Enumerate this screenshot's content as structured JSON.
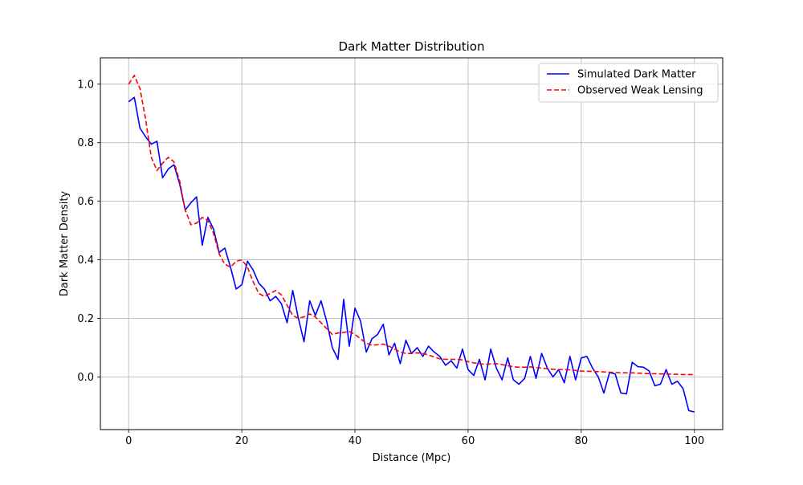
{
  "chart_data": {
    "type": "line",
    "title": "Dark Matter Distribution",
    "xlabel": "Distance (Mpc)",
    "ylabel": "Dark Matter Density",
    "xlim": [
      -5,
      105
    ],
    "ylim": [
      -0.18,
      1.09
    ],
    "xticks": [
      0,
      20,
      40,
      60,
      80,
      100
    ],
    "xtick_labels": [
      "0",
      "20",
      "40",
      "60",
      "80",
      "100"
    ],
    "yticks": [
      0.0,
      0.2,
      0.4,
      0.6,
      0.8,
      1.0
    ],
    "ytick_labels": [
      "0.0",
      "0.2",
      "0.4",
      "0.6",
      "0.8",
      "1.0"
    ],
    "grid": true,
    "legend_position": "top-right",
    "series": [
      {
        "name": "Simulated Dark Matter",
        "color": "#0000ff",
        "style": "solid",
        "x": [
          0,
          1,
          2,
          3,
          4,
          5,
          6,
          7,
          8,
          9,
          10,
          11,
          12,
          13,
          14,
          15,
          16,
          17,
          18,
          19,
          20,
          21,
          22,
          23,
          24,
          25,
          26,
          27,
          28,
          29,
          30,
          31,
          32,
          33,
          34,
          35,
          36,
          37,
          38,
          39,
          40,
          41,
          42,
          43,
          44,
          45,
          46,
          47,
          48,
          49,
          50,
          51,
          52,
          53,
          54,
          55,
          56,
          57,
          58,
          59,
          60,
          61,
          62,
          63,
          64,
          65,
          66,
          67,
          68,
          69,
          70,
          71,
          72,
          73,
          74,
          75,
          76,
          77,
          78,
          79,
          80,
          81,
          82,
          83,
          84,
          85,
          86,
          87,
          88,
          89,
          90,
          91,
          92,
          93,
          94,
          95,
          96,
          97,
          98,
          99,
          100
        ],
        "y": [
          0.94,
          0.955,
          0.85,
          0.82,
          0.795,
          0.805,
          0.68,
          0.71,
          0.725,
          0.66,
          0.57,
          0.595,
          0.615,
          0.45,
          0.545,
          0.505,
          0.425,
          0.44,
          0.375,
          0.3,
          0.315,
          0.395,
          0.365,
          0.32,
          0.3,
          0.26,
          0.275,
          0.25,
          0.185,
          0.295,
          0.2,
          0.12,
          0.26,
          0.21,
          0.26,
          0.19,
          0.1,
          0.06,
          0.265,
          0.105,
          0.235,
          0.19,
          0.085,
          0.13,
          0.145,
          0.18,
          0.075,
          0.115,
          0.045,
          0.125,
          0.08,
          0.1,
          0.07,
          0.105,
          0.085,
          0.07,
          0.04,
          0.055,
          0.03,
          0.095,
          0.025,
          0.005,
          0.06,
          -0.01,
          0.095,
          0.03,
          -0.01,
          0.065,
          -0.01,
          -0.025,
          -0.005,
          0.07,
          -0.005,
          0.08,
          0.03,
          0.0,
          0.025,
          -0.02,
          0.07,
          -0.01,
          0.065,
          0.07,
          0.03,
          0.0,
          -0.055,
          0.015,
          0.01,
          -0.055,
          -0.058,
          0.05,
          0.035,
          0.033,
          0.02,
          -0.03,
          -0.025,
          0.025,
          -0.025,
          -0.015,
          -0.04,
          -0.115,
          -0.12
        ]
      },
      {
        "name": "Observed Weak Lensing",
        "color": "#ff0000",
        "style": "dashed",
        "x": [
          0,
          1,
          2,
          3,
          4,
          5,
          6,
          7,
          8,
          9,
          10,
          11,
          12,
          13,
          14,
          15,
          16,
          17,
          18,
          19,
          20,
          21,
          22,
          23,
          24,
          25,
          26,
          27,
          28,
          29,
          30,
          31,
          32,
          33,
          34,
          35,
          36,
          37,
          38,
          39,
          40,
          41,
          42,
          43,
          44,
          45,
          46,
          47,
          48,
          49,
          50,
          51,
          52,
          53,
          54,
          55,
          56,
          57,
          58,
          59,
          60,
          61,
          62,
          63,
          64,
          65,
          66,
          67,
          68,
          69,
          70,
          71,
          72,
          73,
          74,
          75,
          76,
          77,
          78,
          79,
          80,
          81,
          82,
          83,
          84,
          85,
          86,
          87,
          88,
          89,
          90,
          91,
          92,
          93,
          94,
          95,
          96,
          97,
          98,
          99,
          100
        ],
        "y": [
          1.0,
          1.03,
          0.985,
          0.88,
          0.75,
          0.705,
          0.73,
          0.75,
          0.735,
          0.67,
          0.57,
          0.52,
          0.525,
          0.545,
          0.535,
          0.49,
          0.42,
          0.385,
          0.375,
          0.395,
          0.4,
          0.375,
          0.325,
          0.285,
          0.275,
          0.285,
          0.295,
          0.28,
          0.245,
          0.21,
          0.2,
          0.205,
          0.215,
          0.205,
          0.185,
          0.165,
          0.145,
          0.15,
          0.152,
          0.155,
          0.145,
          0.13,
          0.115,
          0.108,
          0.11,
          0.112,
          0.105,
          0.095,
          0.085,
          0.08,
          0.08,
          0.082,
          0.08,
          0.075,
          0.068,
          0.062,
          0.06,
          0.06,
          0.06,
          0.058,
          0.052,
          0.048,
          0.045,
          0.043,
          0.044,
          0.045,
          0.042,
          0.038,
          0.035,
          0.033,
          0.033,
          0.034,
          0.032,
          0.03,
          0.028,
          0.026,
          0.025,
          0.025,
          0.024,
          0.022,
          0.02,
          0.019,
          0.019,
          0.018,
          0.017,
          0.016,
          0.015,
          0.014,
          0.014,
          0.014,
          0.013,
          0.012,
          0.011,
          0.011,
          0.01,
          0.01,
          0.009,
          0.009,
          0.008,
          0.008,
          0.008
        ]
      }
    ]
  }
}
